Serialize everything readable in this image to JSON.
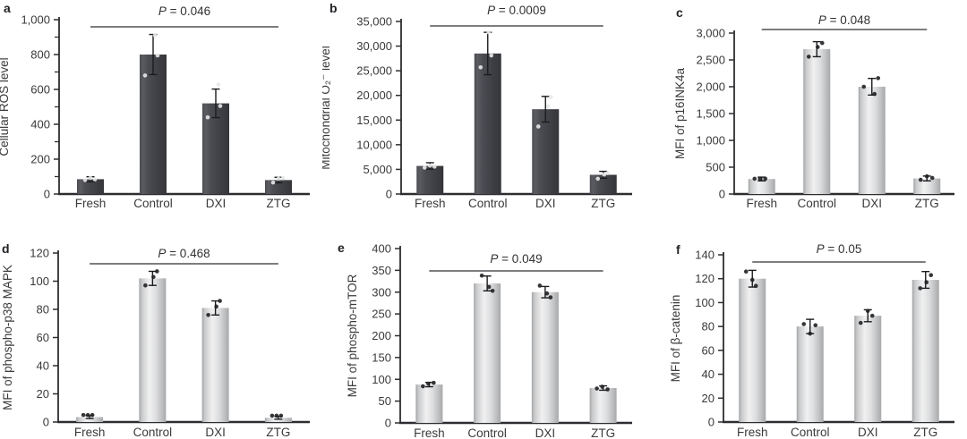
{
  "figure_title": "",
  "colors": {
    "axis": "#2c2d30",
    "text": "#3a3a3c",
    "sig_line": "#515256",
    "error_bar": "#1b1c1f",
    "dark_bar_edge": "#35363a",
    "dark_bar_light": "#5b5c62",
    "light_bar_edge": "#a3a4a6",
    "light_bar_light": "#f0f0f1",
    "dot_on_dark": "#e8e8e8",
    "dot_on_light": "#212124"
  },
  "chart_data": [
    {
      "type": "bar",
      "panel_letter": "a",
      "ylabel": "Cellular ROS level",
      "xlabel": "",
      "p_label": "P = 0.046",
      "theme": "dark",
      "ylim": [
        0,
        1000
      ],
      "yticks": [
        0,
        200,
        400,
        600,
        800,
        1000
      ],
      "ytick_labels": [
        "0",
        "200",
        "400",
        "600",
        "800",
        "1,000"
      ],
      "ytick_minor_step": 100,
      "categories": [
        "Fresh",
        "Control",
        "DXI",
        "ZTG"
      ],
      "values": [
        85,
        800,
        520,
        80
      ],
      "errors": [
        14,
        115,
        82,
        16
      ],
      "dots": [
        [
          [
            -6,
            80
          ],
          [
            0,
            92
          ],
          [
            5,
            84
          ]
        ],
        [
          [
            -9,
            680
          ],
          [
            5,
            795
          ],
          [
            2,
            910
          ]
        ],
        [
          [
            -9,
            440
          ],
          [
            5,
            505
          ],
          [
            3,
            628
          ]
        ],
        [
          [
            -6,
            66
          ],
          [
            0,
            88
          ],
          [
            5,
            92
          ]
        ]
      ]
    },
    {
      "type": "bar",
      "panel_letter": "b",
      "ylabel": "Mitochondrial O₂⁻ level",
      "xlabel": "",
      "p_label": "P = 0.0009",
      "theme": "dark",
      "ylim": [
        0,
        35000
      ],
      "yticks": [
        0,
        5000,
        10000,
        15000,
        20000,
        25000,
        30000,
        35000
      ],
      "ytick_labels": [
        "0",
        "5,000",
        "10,000",
        "15,000",
        "20,000",
        "25,000",
        "30,000",
        "35,000"
      ],
      "ytick_minor_step": null,
      "categories": [
        "Fresh",
        "Control",
        "DXI",
        "ZTG"
      ],
      "values": [
        5700,
        28500,
        17200,
        3900
      ],
      "errors": [
        650,
        4300,
        2600,
        700
      ],
      "dots": [
        [
          [
            -6,
            5350
          ],
          [
            0,
            5750
          ],
          [
            5,
            5550
          ]
        ],
        [
          [
            -8,
            25700
          ],
          [
            4,
            28100
          ],
          [
            1,
            32800
          ]
        ],
        [
          [
            -8,
            13700
          ],
          [
            3,
            17800
          ],
          [
            6,
            19700
          ]
        ],
        [
          [
            -6,
            3100
          ],
          [
            1,
            3950
          ],
          [
            5,
            4250
          ]
        ]
      ]
    },
    {
      "type": "bar",
      "panel_letter": "c",
      "ylabel": "MFI of p16INK4a",
      "xlabel": "",
      "p_label": "P = 0.048",
      "theme": "light",
      "ylim": [
        0,
        3000
      ],
      "yticks": [
        0,
        500,
        1000,
        1500,
        2000,
        2500,
        3000
      ],
      "ytick_labels": [
        "0",
        "500",
        "1,000",
        "1,500",
        "2,000",
        "2,500",
        "3,000"
      ],
      "ytick_minor_step": null,
      "categories": [
        "Fresh",
        "Control",
        "DXI",
        "ZTG"
      ],
      "values": [
        280,
        2700,
        2000,
        290
      ],
      "errors": [
        35,
        140,
        155,
        45
      ],
      "dots": [
        [
          [
            -8,
            285
          ],
          [
            -2,
            285
          ],
          [
            4,
            285
          ]
        ],
        [
          [
            -9,
            2560
          ],
          [
            1,
            2740
          ],
          [
            6,
            2815
          ]
        ],
        [
          [
            -9,
            2000
          ],
          [
            3,
            1865
          ],
          [
            7,
            2160
          ]
        ],
        [
          [
            -7,
            265
          ],
          [
            0,
            330
          ],
          [
            6,
            300
          ]
        ]
      ]
    },
    {
      "type": "bar",
      "panel_letter": "d",
      "ylabel": "MFI of phospho-p38 MAPK",
      "xlabel": "",
      "p_label": "P = 0.468",
      "theme": "light",
      "ylim": [
        0,
        120
      ],
      "yticks": [
        0,
        20,
        40,
        60,
        80,
        100,
        120
      ],
      "ytick_labels": [
        "0",
        "20",
        "40",
        "60",
        "80",
        "100",
        "120"
      ],
      "ytick_minor_step": null,
      "categories": [
        "Fresh",
        "Control",
        "DXI",
        "ZTG"
      ],
      "values": [
        3.5,
        102,
        81,
        3
      ],
      "errors": [
        1,
        5,
        5,
        1
      ],
      "dots": [
        [
          [
            -7,
            5
          ],
          [
            -2,
            5
          ],
          [
            3,
            5
          ]
        ],
        [
          [
            -8,
            97
          ],
          [
            1,
            103
          ],
          [
            5,
            107
          ]
        ],
        [
          [
            -8,
            76
          ],
          [
            1,
            82
          ],
          [
            5,
            86
          ]
        ],
        [
          [
            -7,
            4.5
          ],
          [
            -2,
            4.5
          ],
          [
            3,
            4.5
          ]
        ]
      ]
    },
    {
      "type": "bar",
      "panel_letter": "e",
      "ylabel": "MFI of phospho-mTOR",
      "xlabel": "",
      "p_label": "P = 0.049",
      "theme": "light",
      "ylim": [
        0,
        400
      ],
      "yticks": [
        0,
        50,
        100,
        150,
        200,
        250,
        300,
        350,
        400
      ],
      "ytick_labels": [
        "0",
        "50",
        "100",
        "150",
        "200",
        "250",
        "300",
        "350",
        "400"
      ],
      "ytick_minor_step": null,
      "categories": [
        "Fresh",
        "Control",
        "DXI",
        "ZTG"
      ],
      "values": [
        88,
        320,
        300,
        80
      ],
      "errors": [
        5,
        17,
        13,
        5
      ],
      "dots": [
        [
          [
            -7,
            84
          ],
          [
            -1,
            90
          ],
          [
            5,
            92
          ]
        ],
        [
          [
            -6,
            338
          ],
          [
            2,
            312
          ],
          [
            6,
            303
          ]
        ],
        [
          [
            -6,
            315
          ],
          [
            2,
            297
          ],
          [
            6,
            288
          ]
        ],
        [
          [
            -7,
            79
          ],
          [
            -1,
            83
          ],
          [
            5,
            77
          ]
        ]
      ]
    },
    {
      "type": "bar",
      "panel_letter": "f",
      "ylabel": "MFI of β-catenin",
      "xlabel": "",
      "p_label": "P = 0.05",
      "theme": "light",
      "ylim": [
        0,
        140
      ],
      "yticks": [
        0,
        20,
        40,
        60,
        80,
        100,
        120,
        140
      ],
      "ytick_labels": [
        "0",
        "20",
        "40",
        "60",
        "80",
        "100",
        "120",
        "140"
      ],
      "ytick_minor_step": null,
      "categories": [
        "Fresh",
        "Control",
        "DXI",
        "ZTG"
      ],
      "values": [
        120,
        80,
        89,
        119
      ],
      "errors": [
        7,
        6,
        5,
        7
      ],
      "dots": [
        [
          [
            -7,
            126
          ],
          [
            0,
            119
          ],
          [
            4,
            114
          ]
        ],
        [
          [
            -7,
            82
          ],
          [
            0,
            74
          ],
          [
            6,
            81
          ]
        ],
        [
          [
            -8,
            83
          ],
          [
            0,
            93
          ],
          [
            5,
            89
          ]
        ],
        [
          [
            -6,
            112
          ],
          [
            1,
            117
          ],
          [
            6,
            123
          ]
        ]
      ]
    }
  ]
}
